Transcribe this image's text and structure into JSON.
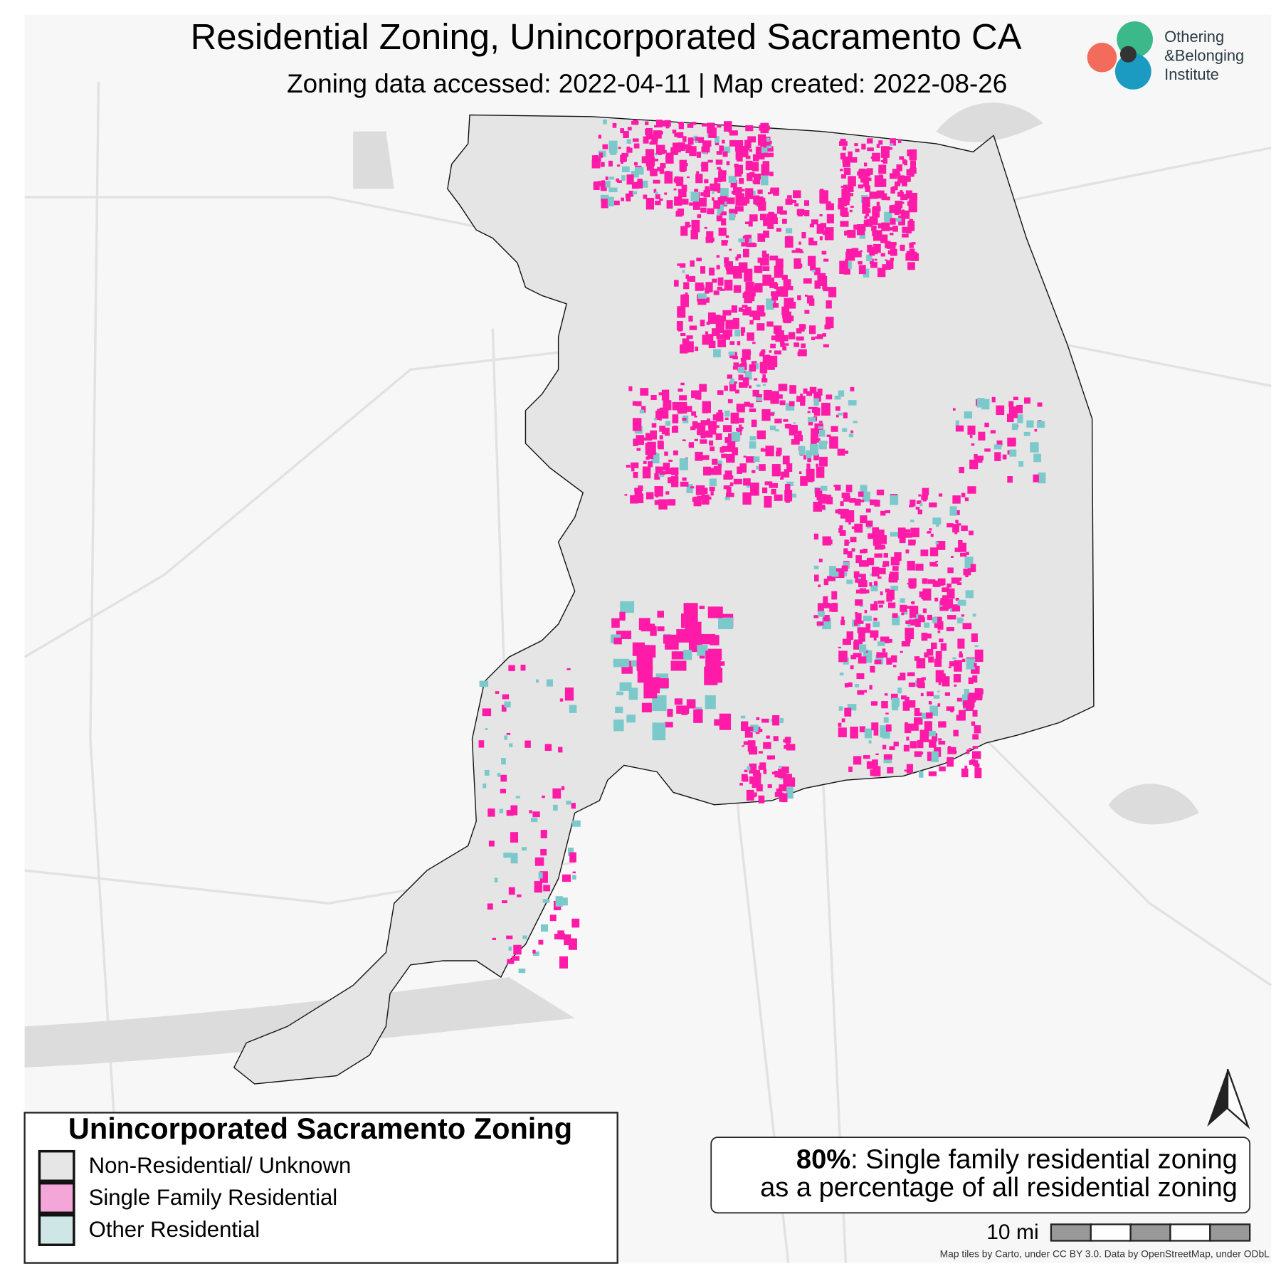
{
  "header": {
    "title": "Residential Zoning, Unincorporated Sacramento CA",
    "subtitle": "Zoning data accessed: 2022-04-11 | Map created: 2022-08-26",
    "logo": [
      "Othering",
      "&Belonging",
      "Institute"
    ]
  },
  "legend": {
    "title": "Unincorporated Sacramento Zoning",
    "items": [
      {
        "label": "Non-Residential/ Unknown",
        "color": "#e6e6e6"
      },
      {
        "label": "Single Family Residential",
        "color": "#f4a6d8"
      },
      {
        "label": "Other Residential",
        "color": "#cfe6e6"
      }
    ]
  },
  "stat_box": {
    "figure": "80%",
    "line1": ": Single family residential zoning",
    "line2": "as a percentage of all residential zoning"
  },
  "scale_bar": {
    "label": "10 mi"
  },
  "attribution": "Map tiles by Carto, under CC BY 3.0. Data by OpenStreetMap, under ODbL"
}
